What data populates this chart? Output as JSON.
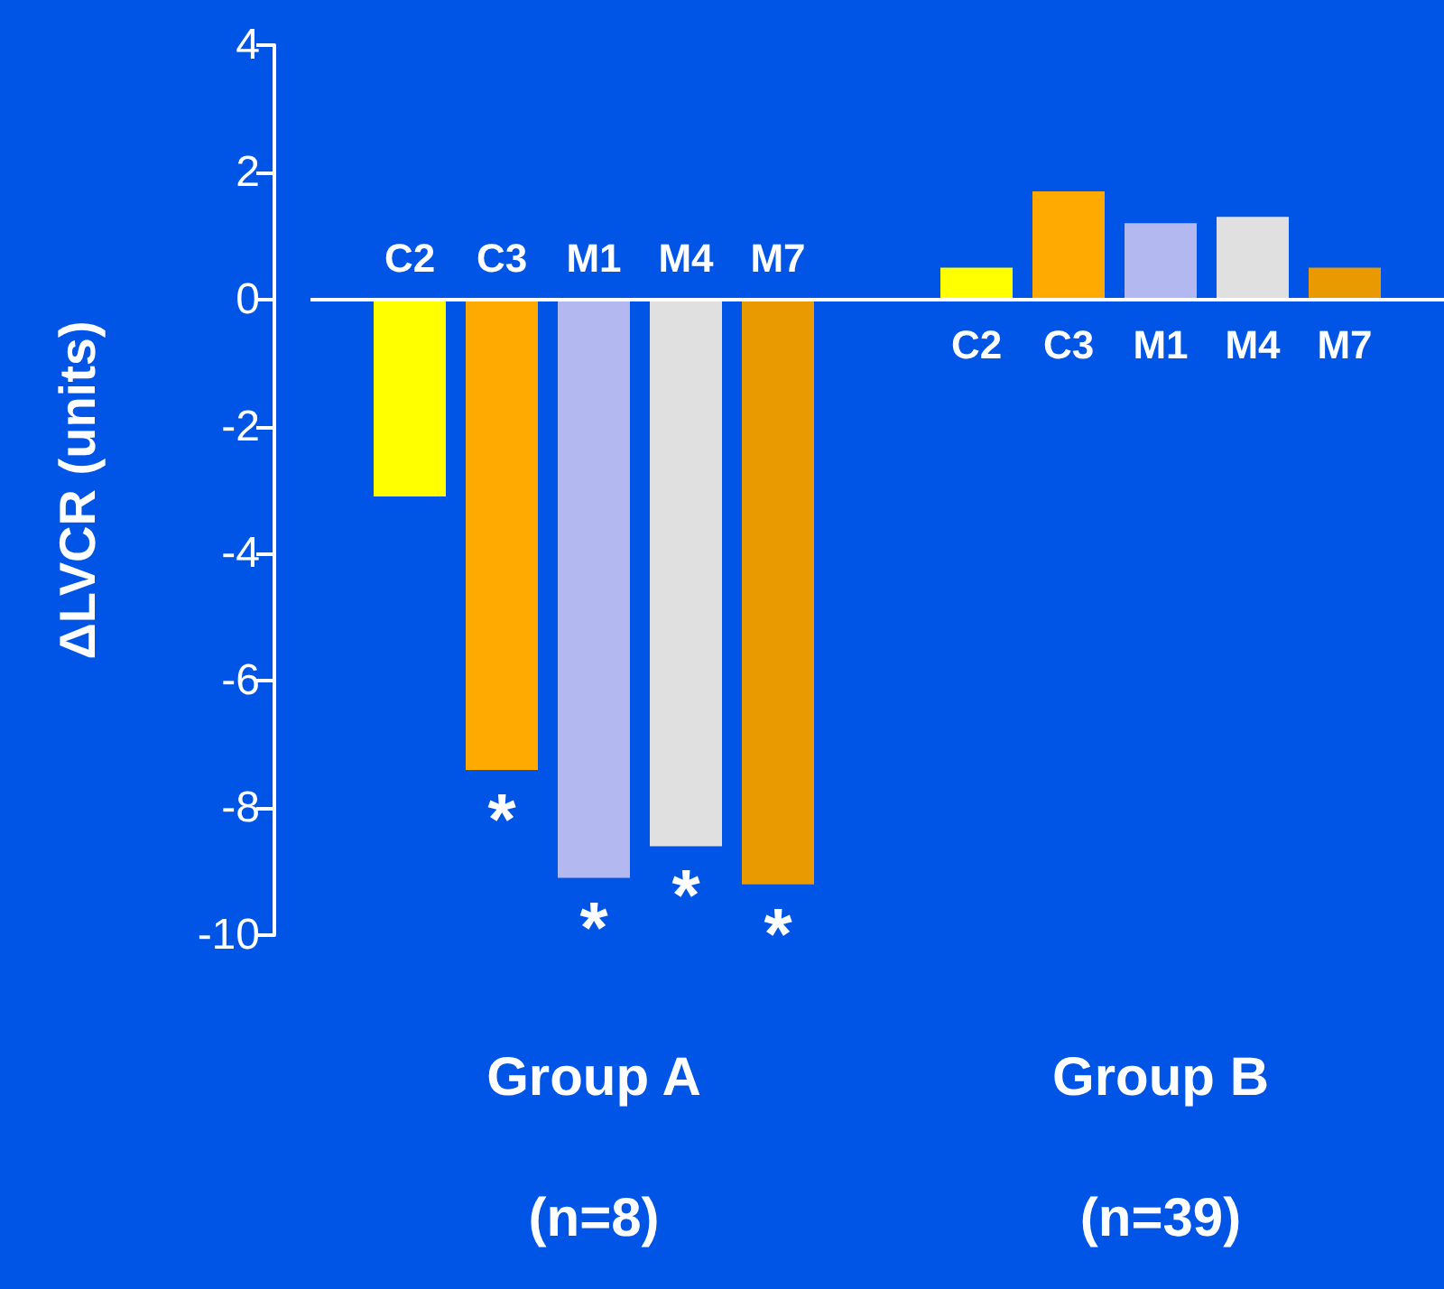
{
  "chart_data": {
    "type": "bar",
    "ylabel": "ΔLVCR (units)",
    "categories": [
      "Group A\n(n=8)",
      "Group B\n(n=39)"
    ],
    "series": [
      {
        "name": "C2",
        "color": "#ffff00",
        "values": [
          -3.1,
          0.5
        ]
      },
      {
        "name": "C3",
        "color": "#ffaa00",
        "values": [
          -7.4,
          1.7
        ],
        "value_labels": [
          "*",
          null
        ]
      },
      {
        "name": "M1",
        "color": "#b4b8f0",
        "values": [
          -9.1,
          1.2
        ],
        "value_labels": [
          "*",
          null
        ]
      },
      {
        "name": "M4",
        "color": "#e0e0e0",
        "values": [
          -8.6,
          1.3
        ],
        "value_labels": [
          "*",
          null
        ]
      },
      {
        "name": "M7",
        "color": "#e89a00",
        "values": [
          -9.2,
          0.5
        ],
        "value_labels": [
          "*",
          null
        ]
      }
    ],
    "ylim": [
      -10,
      4
    ],
    "yticks": [
      -10,
      -8,
      -6,
      -4,
      -2,
      0,
      2,
      4
    ],
    "ref_lines": [
      {
        "axis": "y",
        "value": 0,
        "color": "#ffffff",
        "line_style": "solid"
      }
    ],
    "grid": false,
    "legend": false
  }
}
